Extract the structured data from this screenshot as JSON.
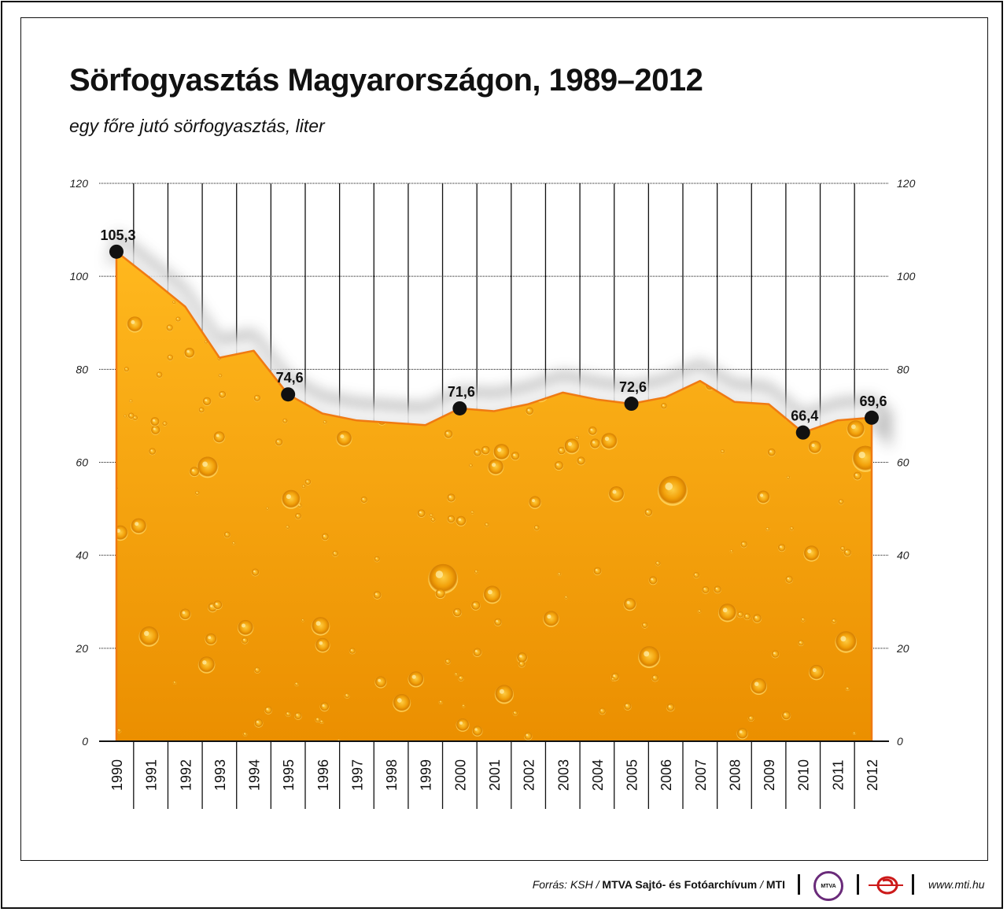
{
  "chart_data": {
    "type": "area",
    "title": "Sörfogyasztás Magyarországon, 1989–2012",
    "subtitle": "egy főre jutó sörfogyasztás, liter",
    "xlabel": "",
    "ylabel": "",
    "ylim": [
      0,
      120
    ],
    "yticks": [
      "0",
      "20",
      "40",
      "60",
      "80",
      "100",
      "120"
    ],
    "grid": true,
    "categories": [
      "1990",
      "1991",
      "1992",
      "1993",
      "1994",
      "1995",
      "1996",
      "1997",
      "1998",
      "1999",
      "2000",
      "2001",
      "2002",
      "2003",
      "2004",
      "2005",
      "2006",
      "2007",
      "2008",
      "2009",
      "2010",
      "2011",
      "2012"
    ],
    "series": [
      {
        "name": "egy főre jutó sörfogyasztás, liter",
        "values": [
          105.3,
          99.5,
          93.5,
          82.5,
          84.0,
          74.6,
          70.5,
          69.0,
          68.5,
          68.0,
          71.6,
          71.0,
          72.5,
          75.0,
          73.5,
          72.6,
          74.0,
          77.5,
          73.0,
          72.5,
          66.4,
          69.0,
          69.6
        ]
      }
    ],
    "annotations": [
      {
        "category": "1990",
        "label": "105,3"
      },
      {
        "category": "1995",
        "label": "74,6"
      },
      {
        "category": "2000",
        "label": "71,6"
      },
      {
        "category": "2005",
        "label": "72,6"
      },
      {
        "category": "2010",
        "label": "66,4"
      },
      {
        "category": "2012",
        "label": "69,6"
      }
    ],
    "colors": {
      "fill_top": "#ffb81e",
      "fill_bottom": "#eb8f00",
      "outline": "#f07a12",
      "grid": "#111111",
      "marker": "#111111"
    }
  },
  "footer": {
    "source_prefix": "Forrás: KSH / ",
    "source_archive": "MTVA Sajtó- és Fotóarchívum",
    "source_mid": " / ",
    "source_agency": "MTI",
    "mtva_logo_text": "MTVA",
    "url": "www.mti.hu"
  }
}
